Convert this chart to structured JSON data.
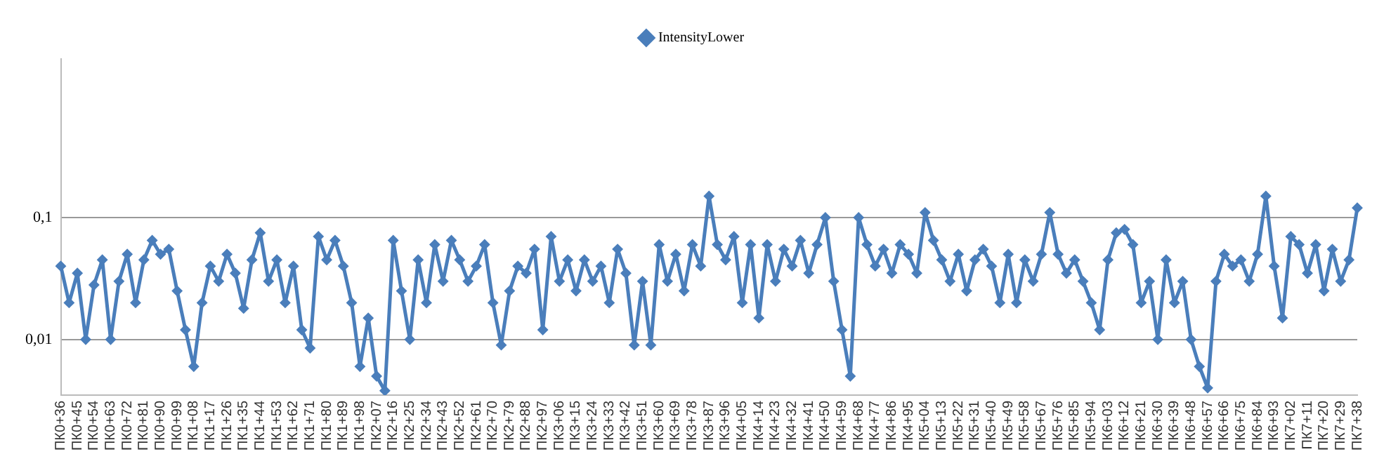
{
  "chart_data": {
    "type": "line",
    "log": "y",
    "grid": "y",
    "legend": "top",
    "marker": "diamond",
    "line_style": "solid",
    "categories": [
      "ПК0+36",
      null,
      "ПК0+45",
      null,
      "ПК0+54",
      null,
      "ПК0+63",
      null,
      "ПК0+72",
      null,
      "ПК0+81",
      null,
      "ПК0+90",
      null,
      "ПК0+99",
      null,
      "ПК1+08",
      null,
      "ПК1+17",
      null,
      "ПК1+26",
      null,
      "ПК1+35",
      null,
      "ПК1+44",
      null,
      "ПК1+53",
      null,
      "ПК1+62",
      null,
      "ПК1+71",
      null,
      "ПК1+80",
      null,
      "ПК1+89",
      null,
      "ПК1+98",
      null,
      "ПК2+07",
      null,
      "ПК2+16",
      null,
      "ПК2+25",
      null,
      "ПК2+34",
      null,
      "ПК2+43",
      null,
      "ПК2+52",
      null,
      "ПК2+61",
      null,
      "ПК2+70",
      null,
      "ПК2+79",
      null,
      "ПК2+88",
      null,
      "ПК2+97",
      null,
      "ПК3+06",
      null,
      "ПК3+15",
      null,
      "ПК3+24",
      null,
      "ПК3+33",
      null,
      "ПК3+42",
      null,
      "ПК3+51",
      null,
      "ПК3+60",
      null,
      "ПК3+69",
      null,
      "ПК3+78",
      null,
      "ПК3+87",
      null,
      "ПК3+96",
      null,
      "ПК4+05",
      null,
      "ПК4+14",
      null,
      "ПК4+23",
      null,
      "ПК4+32",
      null,
      "ПК4+41",
      null,
      "ПК4+50",
      null,
      "ПК4+59",
      null,
      "ПК4+68",
      null,
      "ПК4+77",
      null,
      "ПК4+86",
      null,
      "ПК4+95",
      null,
      "ПК5+04",
      null,
      "ПК5+13",
      null,
      "ПК5+22",
      null,
      "ПК5+31",
      null,
      "ПК5+40",
      null,
      "ПК5+49",
      null,
      "ПК5+58",
      null,
      "ПК5+67",
      null,
      "ПК5+76",
      null,
      "ПК5+85",
      null,
      "ПК5+94",
      null,
      "ПК6+03",
      null,
      "ПК6+12",
      null,
      "ПК6+21",
      null,
      "ПК6+30",
      null,
      "ПК6+39",
      null,
      "ПК6+48",
      null,
      "ПК6+57",
      null,
      "ПК6+66",
      null,
      "ПК6+75",
      null,
      "ПК6+84",
      null,
      "ПК6+93",
      null,
      "ПК7+02",
      null,
      "ПК7+11",
      null,
      "ПК7+20",
      null,
      "ПК7+29",
      null,
      "ПК7+38"
    ],
    "ylim": [
      0.0035,
      2
    ],
    "yticks": [
      {
        "value": 0.01,
        "label": "0,01"
      },
      {
        "value": 0.1,
        "label": "0,1"
      }
    ],
    "series": [
      {
        "name": "IntensityLower",
        "color": "#4a7ebb",
        "values": [
          0.04,
          0.02,
          0.035,
          0.01,
          0.028,
          0.045,
          0.01,
          0.03,
          0.05,
          0.02,
          0.045,
          0.065,
          0.05,
          0.055,
          0.025,
          0.012,
          0.006,
          0.02,
          0.04,
          0.03,
          0.05,
          0.035,
          0.018,
          0.045,
          0.075,
          0.03,
          0.045,
          0.02,
          0.04,
          0.012,
          0.0085,
          0.07,
          0.045,
          0.065,
          0.04,
          0.02,
          0.006,
          0.015,
          0.005,
          0.0038,
          0.065,
          0.025,
          0.01,
          0.045,
          0.02,
          0.06,
          0.03,
          0.065,
          0.045,
          0.03,
          0.04,
          0.06,
          0.02,
          0.009,
          0.025,
          0.04,
          0.035,
          0.055,
          0.012,
          0.07,
          0.03,
          0.045,
          0.025,
          0.045,
          0.03,
          0.04,
          0.02,
          0.055,
          0.035,
          0.009,
          0.03,
          0.009,
          0.06,
          0.03,
          0.05,
          0.025,
          0.06,
          0.04,
          0.15,
          0.06,
          0.045,
          0.07,
          0.02,
          0.06,
          0.015,
          0.06,
          0.03,
          0.055,
          0.04,
          0.065,
          0.035,
          0.06,
          0.1,
          0.03,
          0.012,
          0.005,
          0.1,
          0.06,
          0.04,
          0.055,
          0.035,
          0.06,
          0.05,
          0.035,
          0.11,
          0.065,
          0.045,
          0.03,
          0.05,
          0.025,
          0.045,
          0.055,
          0.04,
          0.02,
          0.05,
          0.02,
          0.045,
          0.03,
          0.05,
          0.11,
          0.05,
          0.035,
          0.045,
          0.03,
          0.02,
          0.012,
          0.045,
          0.075,
          0.08,
          0.06,
          0.02,
          0.03,
          0.01,
          0.045,
          0.02,
          0.03,
          0.01,
          0.006,
          0.004,
          0.03,
          0.05,
          0.04,
          0.045,
          0.03,
          0.05,
          0.15,
          0.04,
          0.015,
          0.07,
          0.06,
          0.035,
          0.06,
          0.025,
          0.055,
          0.03,
          0.045,
          0.12
        ]
      }
    ]
  }
}
